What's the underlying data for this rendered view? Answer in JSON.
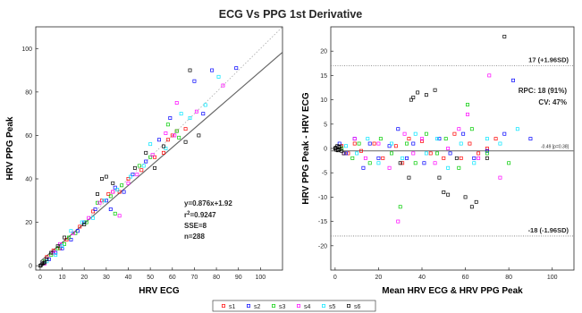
{
  "figure_title": "ECG Vs PPG 1st Derivative",
  "colors": {
    "s1": "#ff0000",
    "s2": "#0000ff",
    "s3": "#00cc00",
    "s4": "#ff00ff",
    "s5": "#00e5ff",
    "s6": "#000000",
    "fit_line": "#666666",
    "identity_line": "#aaaaaa",
    "axes": "#262626",
    "ref_line": "#777777"
  },
  "legend": {
    "position": "bottom-center",
    "entries": [
      "s1",
      "s2",
      "s3",
      "s4",
      "s5",
      "s6"
    ]
  },
  "chart_data": [
    {
      "type": "scatter",
      "title": "",
      "xlabel": "HRV ECG",
      "ylabel": "HRV PPG Peak",
      "xlim": [
        -2,
        110
      ],
      "ylim": [
        -2,
        110
      ],
      "xticks": [
        0,
        10,
        20,
        30,
        40,
        50,
        60,
        70,
        80,
        90,
        100
      ],
      "yticks": [
        0,
        20,
        40,
        60,
        80,
        100
      ],
      "grid": false,
      "annotations": {
        "equation": "y=0.876x+1.92",
        "r_squared_prefix": "r",
        "r_squared_sup": "2",
        "r_squared_value": "=0.9247",
        "sse": "SSE=8",
        "n": "n=288"
      },
      "fit_line": {
        "slope": 0.876,
        "intercept": 1.92
      },
      "identity_line": {
        "slope": 1,
        "intercept": 0
      },
      "series": [
        {
          "name": "s1",
          "points": [
            [
              3,
              4
            ],
            [
              6,
              7
            ],
            [
              9,
              8
            ],
            [
              12,
              12
            ],
            [
              18,
              18
            ],
            [
              24,
              25
            ],
            [
              28,
              30
            ],
            [
              31,
              33
            ],
            [
              33,
              34
            ],
            [
              36,
              34
            ],
            [
              40,
              40
            ],
            [
              46,
              44
            ],
            [
              52,
              50
            ],
            [
              56,
              52
            ],
            [
              58,
              58
            ],
            [
              60,
              60
            ],
            [
              62,
              62
            ],
            [
              66,
              63
            ]
          ]
        },
        {
          "name": "s2",
          "points": [
            [
              1,
              1
            ],
            [
              4,
              3
            ],
            [
              7,
              6
            ],
            [
              10,
              8
            ],
            [
              14,
              12
            ],
            [
              17,
              16
            ],
            [
              20,
              20
            ],
            [
              25,
              26
            ],
            [
              30,
              30
            ],
            [
              32,
              26
            ],
            [
              34,
              36
            ],
            [
              38,
              34
            ],
            [
              42,
              42
            ],
            [
              48,
              48
            ],
            [
              54,
              58
            ],
            [
              59,
              68
            ],
            [
              70,
              85
            ],
            [
              74,
              70
            ],
            [
              78,
              90
            ],
            [
              89,
              91
            ]
          ]
        },
        {
          "name": "s3",
          "points": [
            [
              2,
              2
            ],
            [
              5,
              5
            ],
            [
              8,
              8
            ],
            [
              11,
              10
            ],
            [
              13,
              13
            ],
            [
              16,
              15
            ],
            [
              21,
              20
            ],
            [
              26,
              29
            ],
            [
              32,
              32
            ],
            [
              34,
              24
            ],
            [
              37,
              37
            ],
            [
              45,
              46
            ],
            [
              50,
              50
            ],
            [
              58,
              65
            ],
            [
              62,
              62
            ],
            [
              63,
              59
            ]
          ]
        },
        {
          "name": "s4",
          "points": [
            [
              2,
              1
            ],
            [
              6,
              6
            ],
            [
              9,
              10
            ],
            [
              15,
              15
            ],
            [
              22,
              22
            ],
            [
              27,
              29
            ],
            [
              33,
              34
            ],
            [
              36,
              23
            ],
            [
              40,
              38
            ],
            [
              44,
              42
            ],
            [
              51,
              51
            ],
            [
              57,
              61
            ],
            [
              61,
              60
            ],
            [
              62,
              75
            ],
            [
              71,
              71
            ],
            [
              83,
              83
            ]
          ]
        },
        {
          "name": "s5",
          "points": [
            [
              3,
              2
            ],
            [
              7,
              5
            ],
            [
              10,
              9
            ],
            [
              14,
              16
            ],
            [
              19,
              20
            ],
            [
              24,
              22
            ],
            [
              29,
              30
            ],
            [
              35,
              35
            ],
            [
              41,
              41
            ],
            [
              47,
              46
            ],
            [
              50,
              56
            ],
            [
              57,
              54
            ],
            [
              64,
              70
            ],
            [
              68,
              68
            ],
            [
              75,
              74
            ],
            [
              81,
              87
            ]
          ]
        },
        {
          "name": "s6",
          "points": [
            [
              0,
              0
            ],
            [
              0.5,
              0.3
            ],
            [
              1,
              1
            ],
            [
              1.5,
              1.2
            ],
            [
              2,
              1.5
            ],
            [
              3,
              3
            ],
            [
              5,
              6
            ],
            [
              8,
              9
            ],
            [
              11,
              13
            ],
            [
              20,
              19
            ],
            [
              26,
              33
            ],
            [
              28,
              40
            ],
            [
              30,
              41
            ],
            [
              33,
              38
            ],
            [
              43,
              45
            ],
            [
              48,
              52
            ],
            [
              52,
              45
            ],
            [
              56,
              55
            ],
            [
              66,
              57
            ],
            [
              68,
              90
            ],
            [
              72,
              60
            ]
          ]
        }
      ]
    },
    {
      "type": "scatter",
      "title": "",
      "xlabel": "Mean HRV ECG & HRV PPG Peak",
      "ylabel": "HRV PPG Peak - HRV ECG",
      "xlim": [
        -2,
        110
      ],
      "ylim": [
        -25,
        25
      ],
      "xticks": [
        0,
        20,
        40,
        60,
        80,
        100
      ],
      "yticks": [
        -20,
        -15,
        -10,
        -5,
        0,
        5,
        10,
        15,
        20
      ],
      "grid": false,
      "mean_bias": -0.49,
      "upper_loa": 17,
      "lower_loa": -18,
      "annotations": {
        "upper": "17 (+1.96SD)",
        "lower": "-18 (-1.96SD)",
        "bias": "-0.49 [p=0.38]",
        "rpc": "RPC: 18 (91%)",
        "cv": "CV: 47%"
      },
      "series": [
        {
          "name": "s1",
          "points": [
            [
              3,
              0.5
            ],
            [
              6,
              -1
            ],
            [
              9,
              1
            ],
            [
              12,
              -0.5
            ],
            [
              18,
              1
            ],
            [
              22,
              -2
            ],
            [
              28,
              0.5
            ],
            [
              31,
              -3
            ],
            [
              34,
              2
            ],
            [
              40,
              1.5
            ],
            [
              44,
              -1
            ],
            [
              50,
              -2
            ],
            [
              55,
              3
            ],
            [
              58,
              -2
            ],
            [
              62,
              1
            ],
            [
              66,
              -1
            ],
            [
              70,
              0
            ],
            [
              74,
              2
            ]
          ]
        },
        {
          "name": "s2",
          "points": [
            [
              2,
              1
            ],
            [
              5,
              -1
            ],
            [
              9,
              2
            ],
            [
              13,
              -4
            ],
            [
              16,
              1
            ],
            [
              20,
              -2
            ],
            [
              25,
              0.5
            ],
            [
              29,
              4
            ],
            [
              33,
              -2
            ],
            [
              36,
              1
            ],
            [
              41,
              -3
            ],
            [
              48,
              2
            ],
            [
              53,
              -1
            ],
            [
              59,
              3
            ],
            [
              64,
              -2
            ],
            [
              70,
              -0.5
            ],
            [
              78,
              3
            ],
            [
              82,
              14
            ],
            [
              90,
              2
            ]
          ]
        },
        {
          "name": "s3",
          "points": [
            [
              3,
              0
            ],
            [
              8,
              -2
            ],
            [
              11,
              1
            ],
            [
              16,
              -3
            ],
            [
              21,
              2
            ],
            [
              26,
              -1
            ],
            [
              30,
              -12
            ],
            [
              33,
              1
            ],
            [
              37,
              -3
            ],
            [
              42,
              3
            ],
            [
              47,
              -1
            ],
            [
              51,
              2
            ],
            [
              57,
              -4
            ],
            [
              61,
              9
            ],
            [
              63,
              4
            ],
            [
              70,
              -1
            ],
            [
              80,
              -3
            ]
          ]
        },
        {
          "name": "s4",
          "points": [
            [
              4,
              -1
            ],
            [
              9,
              2
            ],
            [
              14,
              -2
            ],
            [
              20,
              1
            ],
            [
              25,
              -4
            ],
            [
              29,
              -15
            ],
            [
              32,
              3
            ],
            [
              36,
              -1
            ],
            [
              40,
              2
            ],
            [
              46,
              -3
            ],
            [
              52,
              0
            ],
            [
              57,
              4
            ],
            [
              61,
              7
            ],
            [
              66,
              -2
            ],
            [
              71,
              15
            ],
            [
              76,
              -6
            ]
          ]
        },
        {
          "name": "s5",
          "points": [
            [
              5,
              0.5
            ],
            [
              10,
              -1
            ],
            [
              15,
              2
            ],
            [
              20,
              -3
            ],
            [
              26,
              1
            ],
            [
              31,
              -2
            ],
            [
              37,
              3
            ],
            [
              42,
              -1
            ],
            [
              47,
              2
            ],
            [
              52,
              -4
            ],
            [
              58,
              1
            ],
            [
              64,
              -3
            ],
            [
              70,
              2
            ],
            [
              76,
              1
            ],
            [
              84,
              4
            ]
          ]
        },
        {
          "name": "s6",
          "points": [
            [
              0,
              0
            ],
            [
              0.3,
              0.2
            ],
            [
              0.6,
              -0.3
            ],
            [
              1,
              0.5
            ],
            [
              1.3,
              -0.4
            ],
            [
              1.6,
              0.3
            ],
            [
              2,
              -0.2
            ],
            [
              2.3,
              0.4
            ],
            [
              3,
              -0.5
            ],
            [
              4,
              -1
            ],
            [
              30,
              -3
            ],
            [
              34,
              -6
            ],
            [
              35,
              10
            ],
            [
              36,
              10.5
            ],
            [
              38,
              11.5
            ],
            [
              42,
              11
            ],
            [
              46,
              12
            ],
            [
              48,
              -6
            ],
            [
              50,
              -9
            ],
            [
              52,
              -9.5
            ],
            [
              56,
              -2
            ],
            [
              60,
              -10
            ],
            [
              63,
              -12
            ],
            [
              65,
              -11
            ],
            [
              70,
              -2
            ],
            [
              78,
              23
            ]
          ]
        }
      ]
    }
  ]
}
